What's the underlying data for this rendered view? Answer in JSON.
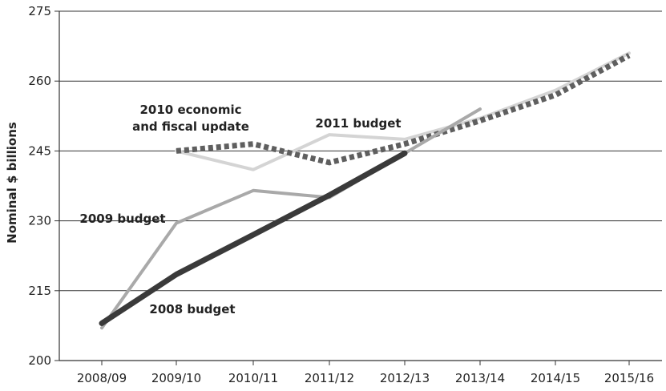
{
  "chart_data": {
    "type": "line",
    "title": "",
    "xlabel": "",
    "ylabel": "Nominal $ billions",
    "ylim": [
      200,
      275
    ],
    "yticks": [
      200,
      215,
      230,
      245,
      260,
      275
    ],
    "grid": "horizontal",
    "categories": [
      "2008/09",
      "2009/10",
      "2010/11",
      "2011/12",
      "2012/13",
      "2013/14",
      "2014/15",
      "2015/16"
    ],
    "series": [
      {
        "name": "2008 budget",
        "color": "#3a3a3a",
        "style": "solid-thick",
        "values": [
          208.0,
          218.5,
          227.0,
          235.5,
          244.5,
          null,
          null,
          null
        ]
      },
      {
        "name": "2009 budget",
        "color": "#a9a9a9",
        "style": "solid",
        "values": [
          207.0,
          229.5,
          236.5,
          235.0,
          244.5,
          254.0,
          null,
          null
        ]
      },
      {
        "name": "2010 economic and fiscal update",
        "color": "#5f5f5f",
        "style": "dashed-thick",
        "values": [
          null,
          245.0,
          246.5,
          242.5,
          246.5,
          251.5,
          257.0,
          265.5
        ]
      },
      {
        "name": "2011 budget",
        "color": "#d4d4d4",
        "style": "solid",
        "values": [
          null,
          245.0,
          241.0,
          248.5,
          247.5,
          252.0,
          258.0,
          266.0
        ]
      }
    ],
    "annotations": [
      {
        "series": "2010 economic and fiscal update",
        "lines": [
          "2010 economic",
          "and fiscal update"
        ]
      },
      {
        "series": "2011 budget",
        "lines": [
          "2011 budget"
        ]
      },
      {
        "series": "2009 budget",
        "lines": [
          "2009 budget"
        ]
      },
      {
        "series": "2008 budget",
        "lines": [
          "2008 budget"
        ]
      }
    ]
  }
}
